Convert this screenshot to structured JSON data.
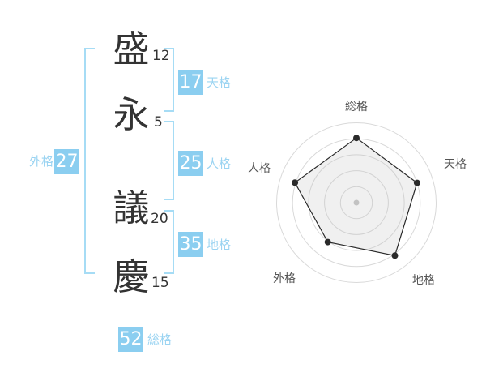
{
  "colors": {
    "accent_blue": "#8BCEF0",
    "label_blue": "#9BD4F2",
    "bracket_blue": "#A6DCF5",
    "ink": "#333333",
    "chart_label": "#555555",
    "ring": "#D9D9D9",
    "series_line": "#2A2A2A",
    "series_dot": "#2A2A2A",
    "series_fill": "rgba(185,185,185,0.22)",
    "center_dot": "#C2C2C2",
    "badge_text": "#FFFFFF"
  },
  "name": {
    "characters": [
      {
        "char": "盛",
        "strokes": "12"
      },
      {
        "char": "永",
        "strokes": "5"
      },
      {
        "char": "議",
        "strokes": "20"
      },
      {
        "char": "慶",
        "strokes": "15"
      }
    ]
  },
  "kaku": {
    "tenkaku": {
      "value": "17",
      "label": "天格"
    },
    "jinkaku": {
      "value": "25",
      "label": "人格"
    },
    "chikaku": {
      "value": "35",
      "label": "地格"
    },
    "gaikaku": {
      "value": "27",
      "label": "外格"
    },
    "soukaku": {
      "value": "52",
      "label": "総格"
    }
  },
  "chart_data": {
    "type": "radar",
    "categories": [
      "総格",
      "天格",
      "地格",
      "外格",
      "人格"
    ],
    "values": [
      81,
      80,
      82,
      61,
      81
    ],
    "max": 100,
    "rings": 5,
    "start_angle_deg": -90,
    "direction": "clockwise",
    "grid": "concentric-circles",
    "spokes": false,
    "legend": "none",
    "title": ""
  }
}
